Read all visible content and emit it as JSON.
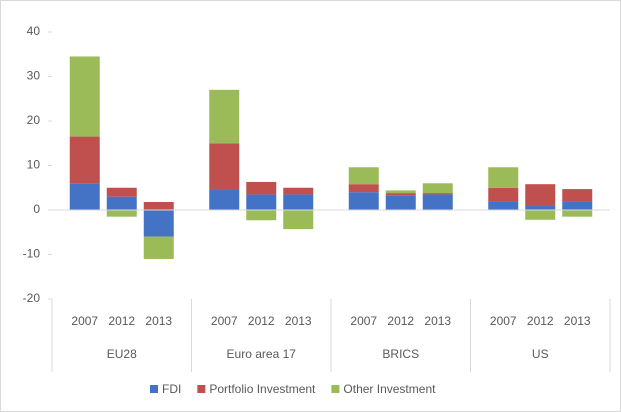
{
  "chart_data": {
    "type": "grouped-stacked-bar",
    "groups": [
      {
        "name": "EU28",
        "categories": [
          "2007",
          "2012",
          "2013"
        ]
      },
      {
        "name": "Euro area 17",
        "categories": [
          "2007",
          "2012",
          "2013"
        ]
      },
      {
        "name": "BRICS",
        "categories": [
          "2007",
          "2012",
          "2013"
        ]
      },
      {
        "name": "US",
        "categories": [
          "2007",
          "2012",
          "2013"
        ]
      }
    ],
    "series": [
      {
        "name": "FDI",
        "color": "#4472c4",
        "values": [
          6,
          3,
          -6,
          4.5,
          3.5,
          3.5,
          4,
          3.2,
          3.5,
          2,
          1,
          2
        ]
      },
      {
        "name": "Portfolio Investment",
        "color": "#c0504d",
        "values": [
          10.5,
          2,
          1.8,
          10.5,
          2.8,
          1.5,
          1.8,
          0.6,
          0.3,
          3,
          4.8,
          2.7
        ]
      },
      {
        "name": "Other Investment",
        "color": "#9bbb59",
        "values": [
          18,
          -1.5,
          -5,
          12,
          -2.3,
          -4.3,
          3.8,
          0.6,
          2.2,
          4.6,
          -2.2,
          -1.5
        ]
      }
    ],
    "ylim": [
      -20,
      40
    ],
    "yticks": [
      -20,
      -10,
      0,
      10,
      20,
      30,
      40
    ],
    "legend": "bottom"
  }
}
